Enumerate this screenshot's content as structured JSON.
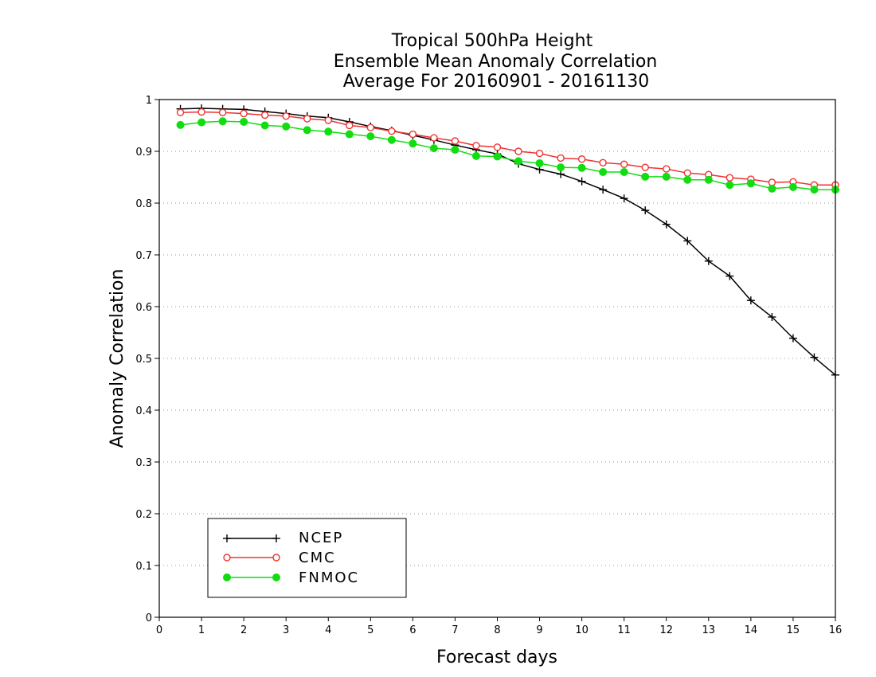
{
  "chart_data": {
    "type": "line",
    "title": [
      "Tropical 500hPa Height",
      "Ensemble Mean Anomaly Correlation",
      "Average For 20160901 - 20161130"
    ],
    "xlabel": "Forecast days",
    "ylabel": "Anomaly Correlation",
    "xlim": [
      0,
      16
    ],
    "ylim": [
      0,
      1
    ],
    "xticks": [
      "0",
      "1",
      "2",
      "3",
      "4",
      "5",
      "6",
      "7",
      "8",
      "9",
      "10",
      "11",
      "12",
      "13",
      "14",
      "15",
      "16"
    ],
    "yticks": [
      "0",
      "0.1",
      "0.2",
      "0.3",
      "0.4",
      "0.5",
      "0.6",
      "0.7",
      "0.8",
      "0.9",
      "1"
    ],
    "grid": "horizontal dotted",
    "legend_position": "bottom-left",
    "x": [
      0.5,
      1,
      1.5,
      2,
      2.5,
      3,
      3.5,
      4,
      4.5,
      5,
      5.5,
      6,
      6.5,
      7,
      7.5,
      8,
      8.5,
      9,
      9.5,
      10,
      10.5,
      11,
      11.5,
      12,
      12.5,
      13,
      13.5,
      14,
      14.5,
      15,
      15.5,
      16
    ],
    "series": [
      {
        "name": "NCEP",
        "color": "#000000",
        "marker": "plus",
        "values": [
          0.982,
          0.983,
          0.982,
          0.981,
          0.977,
          0.973,
          0.968,
          0.965,
          0.957,
          0.948,
          0.94,
          0.931,
          0.922,
          0.912,
          0.903,
          0.895,
          0.876,
          0.865,
          0.856,
          0.842,
          0.826,
          0.809,
          0.786,
          0.759,
          0.727,
          0.688,
          0.659,
          0.612,
          0.58,
          0.539,
          0.502,
          0.468
        ]
      },
      {
        "name": "CMC",
        "color": "#ee3333",
        "marker": "open-circle",
        "values": [
          0.975,
          0.976,
          0.975,
          0.973,
          0.97,
          0.968,
          0.963,
          0.96,
          0.95,
          0.946,
          0.939,
          0.933,
          0.926,
          0.92,
          0.911,
          0.908,
          0.9,
          0.896,
          0.887,
          0.885,
          0.878,
          0.875,
          0.869,
          0.866,
          0.858,
          0.855,
          0.849,
          0.846,
          0.84,
          0.841,
          0.835,
          0.835
        ]
      },
      {
        "name": "FNMOC",
        "color": "#11dd11",
        "marker": "filled-circle",
        "values": [
          0.951,
          0.956,
          0.958,
          0.957,
          0.95,
          0.948,
          0.941,
          0.938,
          0.933,
          0.929,
          0.922,
          0.915,
          0.906,
          0.903,
          0.891,
          0.89,
          0.881,
          0.877,
          0.869,
          0.868,
          0.86,
          0.86,
          0.851,
          0.851,
          0.845,
          0.845,
          0.835,
          0.838,
          0.828,
          0.831,
          0.826,
          0.826
        ]
      }
    ]
  }
}
